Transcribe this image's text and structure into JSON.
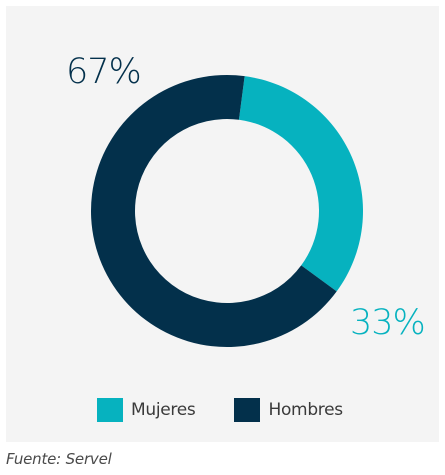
{
  "chart_data": {
    "type": "pie",
    "style": "donut",
    "categories": [
      "Mujeres",
      "Hombres"
    ],
    "values": [
      33,
      67
    ],
    "data_labels": [
      "33%",
      "67%"
    ],
    "colors": [
      "#06b2bf",
      "#03304b"
    ],
    "legend_position": "bottom",
    "title": "",
    "grid": false
  },
  "legend": {
    "items": [
      {
        "label": "Mujeres",
        "color": "#06b2bf"
      },
      {
        "label": "Hombres",
        "color": "#03304b"
      }
    ]
  },
  "source": "Fuente: Servel",
  "colors": {
    "panel_background": "#f4f4f4",
    "page_background": "#ffffff"
  }
}
